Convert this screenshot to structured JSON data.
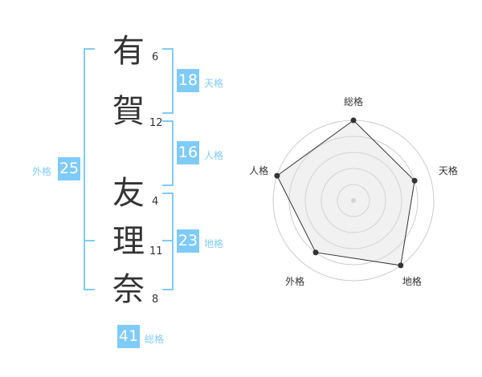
{
  "name": {
    "chars": [
      {
        "char": "有",
        "strokes": "6"
      },
      {
        "char": "賀",
        "strokes": "12"
      },
      {
        "char": "友",
        "strokes": "4"
      },
      {
        "char": "理",
        "strokes": "11"
      },
      {
        "char": "奈",
        "strokes": "8"
      }
    ]
  },
  "kaku": {
    "tenkaku": {
      "label": "天格",
      "value": "18"
    },
    "jinkaku": {
      "label": "人格",
      "value": "16"
    },
    "chikaku": {
      "label": "地格",
      "value": "23"
    },
    "gaikaku": {
      "label": "外格",
      "value": "25"
    },
    "soukaku": {
      "label": "総格",
      "value": "41"
    }
  },
  "colors": {
    "accent": "#7fcbf7",
    "text": "#333333",
    "ring": "#cccccc",
    "fill": "#f0f0f0"
  },
  "chart_data": {
    "type": "radar",
    "axes": [
      "総格",
      "天格",
      "地格",
      "外格",
      "人格"
    ],
    "values": [
      5,
      4,
      5,
      4,
      5
    ],
    "range": [
      0,
      5
    ],
    "rings": 5
  }
}
